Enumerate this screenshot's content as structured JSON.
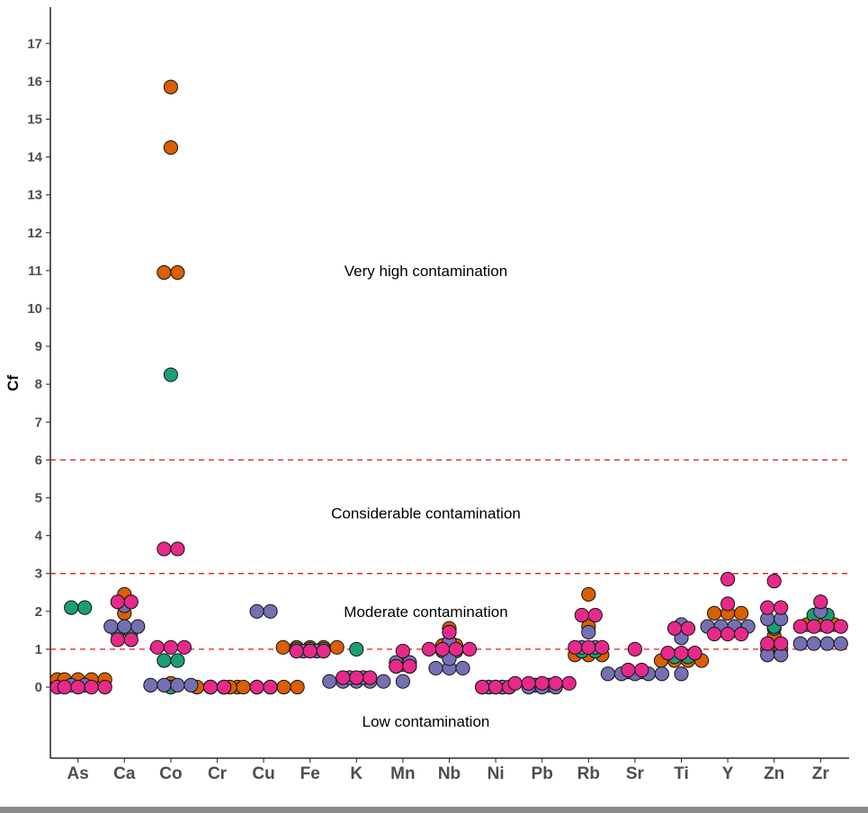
{
  "chart_data": {
    "type": "scatter",
    "ylabel": "Cf",
    "xlabel": "",
    "ylim": [
      -1.8,
      17.9
    ],
    "y_ticks": [
      0,
      1,
      2,
      3,
      4,
      5,
      6,
      7,
      8,
      9,
      10,
      11,
      12,
      13,
      14,
      15,
      16,
      17
    ],
    "categories": [
      "As",
      "Ca",
      "Co",
      "Cr",
      "Cu",
      "Fe",
      "K",
      "Mn",
      "Nb",
      "Ni",
      "Pb",
      "Rb",
      "Sr",
      "Ti",
      "Y",
      "Zn",
      "Zr"
    ],
    "thresholds": [
      {
        "value": 1,
        "style": "dashed",
        "color": "#e41a1c"
      },
      {
        "value": 3,
        "style": "dashed",
        "color": "#e41a1c"
      },
      {
        "value": 6,
        "style": "dashed",
        "color": "#e41a1c"
      }
    ],
    "annotations": [
      {
        "text": "Very high contamination",
        "category": "Nb",
        "y": 11.0
      },
      {
        "text": "Considerable contamination",
        "category": "Nb",
        "y": 4.6
      },
      {
        "text": "Moderate contamination",
        "category": "Nb",
        "y": 2.0
      },
      {
        "text": "Low contamination",
        "category": "Nb",
        "y": -0.9
      }
    ],
    "grid": false,
    "legend": "none",
    "series": [
      {
        "color": "#d95f02",
        "points": {
          "As": [
            0.2,
            0.2,
            0.2,
            0.2,
            0.2
          ],
          "Ca": [
            2.45,
            1.95
          ],
          "Co": [
            15.85,
            14.25,
            10.95,
            10.95,
            0.1
          ],
          "Cr": [
            0,
            0,
            0,
            0
          ],
          "Cu": [
            0,
            0,
            0,
            0,
            0,
            0
          ],
          "Fe": [
            1.05,
            1.05,
            1.05,
            1.05,
            1.05
          ],
          "K": [
            0.2,
            0.2,
            0.2
          ],
          "Mn": [
            0.6,
            0.65
          ],
          "Nb": [
            1.55,
            1.1,
            1.1
          ],
          "Ni": [
            0,
            0,
            0
          ],
          "Pb": [
            0.05,
            0.05
          ],
          "Rb": [
            2.45,
            1.6,
            0.85,
            0.85,
            0.85
          ],
          "Sr": [
            0.45,
            0.45
          ],
          "Ti": [
            0.7,
            0.7,
            0.7,
            0.7
          ],
          "Y": [
            1.95,
            1.95,
            1.95
          ],
          "Zn": [
            1.35,
            1.0,
            1.0
          ],
          "Zr": [
            1.65,
            1.65,
            1.65
          ]
        }
      },
      {
        "color": "#1b9e77",
        "points": {
          "As": [
            2.1,
            2.1
          ],
          "Ca": [
            1.45,
            1.45
          ],
          "Co": [
            8.25,
            0.7,
            0.7,
            0
          ],
          "Cr": [
            0,
            0
          ],
          "Cu": [
            0,
            0
          ],
          "Fe": [
            1.0,
            1.0,
            1.0
          ],
          "K": [
            1.0
          ],
          "Mn": [
            0.55,
            0.55
          ],
          "Nb": [
            0.95,
            0.95
          ],
          "Ni": [
            0,
            0
          ],
          "Pb": [
            0.05,
            0.05
          ],
          "Rb": [
            0.95,
            0.95
          ],
          "Sr": [
            0.4,
            0.4
          ],
          "Ti": [
            0.8,
            0.8
          ],
          "Y": [
            1.5,
            1.5
          ],
          "Zn": [
            1.55,
            1.6
          ],
          "Zr": [
            1.9,
            1.9
          ]
        }
      },
      {
        "color": "#7570b3",
        "points": {
          "As": [
            0.05,
            0.05
          ],
          "Ca": [
            1.6,
            1.6,
            1.6,
            2.15
          ],
          "Co": [
            0.05,
            0.05,
            0.05,
            0.05
          ],
          "Cr": [
            0,
            0
          ],
          "Cu": [
            2.0,
            2.0
          ],
          "Fe": [
            0.95,
            0.95
          ],
          "K": [
            0.15,
            0.15,
            0.15,
            0.15,
            0.15,
            0.25,
            0.25
          ],
          "Mn": [
            0.65,
            0.65,
            0.15
          ],
          "Nb": [
            0.5,
            0.5,
            0.5,
            1.2,
            1.45,
            0.75
          ],
          "Ni": [
            0,
            0
          ],
          "Pb": [
            0,
            0,
            0
          ],
          "Rb": [
            1.05,
            1.05,
            1.45
          ],
          "Sr": [
            0.35,
            0.35,
            0.35,
            0.35,
            0.35
          ],
          "Ti": [
            0.35,
            1.3,
            1.65
          ],
          "Y": [
            1.6,
            1.6,
            1.6,
            1.6
          ],
          "Zn": [
            1.8,
            1.8,
            0.85,
            0.85
          ],
          "Zr": [
            1.15,
            1.15,
            1.15,
            1.15,
            2.0
          ]
        }
      },
      {
        "color": "#e7298a",
        "points": {
          "As": [
            0,
            0,
            0,
            0,
            0
          ],
          "Ca": [
            2.25,
            2.25,
            1.25,
            1.25
          ],
          "Co": [
            3.65,
            3.65,
            1.05,
            1.05,
            1.05
          ],
          "Cr": [
            0,
            0
          ],
          "Cu": [
            0,
            0
          ],
          "Fe": [
            0.95,
            0.95,
            0.95
          ],
          "K": [
            0.25,
            0.25,
            0.25
          ],
          "Mn": [
            0.95,
            0.55,
            0.55
          ],
          "Nb": [
            1.0,
            1.0,
            1.0,
            1.0,
            1.45
          ],
          "Ni": [
            0,
            0,
            0
          ],
          "Pb": [
            0.1,
            0.1,
            0.1,
            0.1,
            0.1
          ],
          "Rb": [
            1.9,
            1.9,
            1.05,
            1.05,
            1.05
          ],
          "Sr": [
            1.0,
            0.45,
            0.45
          ],
          "Ti": [
            1.55,
            1.55,
            0.9,
            0.9,
            0.9
          ],
          "Y": [
            2.85,
            2.2,
            1.4,
            1.4,
            1.4
          ],
          "Zn": [
            2.8,
            2.1,
            2.1,
            1.15,
            1.15
          ],
          "Zr": [
            2.25,
            1.6,
            1.6,
            1.6,
            1.6
          ]
        }
      }
    ]
  }
}
